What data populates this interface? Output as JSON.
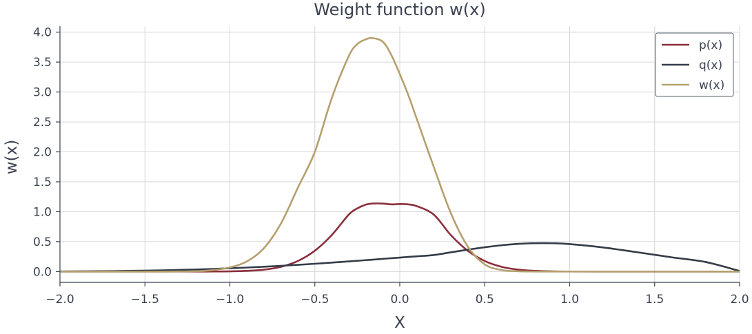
{
  "chart_data": {
    "type": "line",
    "title": "Weight function w(x)",
    "xlabel": "X",
    "ylabel": "w(x)",
    "xlim": [
      -2.0,
      2.0
    ],
    "ylim": [
      -0.18,
      4.1
    ],
    "grid": true,
    "legend_position": "top-right",
    "x_ticks": [
      -2.0,
      -1.5,
      -1.0,
      -0.5,
      0.0,
      0.5,
      1.0,
      1.5,
      2.0
    ],
    "x_tick_labels": [
      "−2.0",
      "−1.5",
      "−1.0",
      "−0.5",
      "0.0",
      "0.5",
      "1.0",
      "1.5",
      "2.0"
    ],
    "y_ticks": [
      0.0,
      0.5,
      1.0,
      1.5,
      2.0,
      2.5,
      3.0,
      3.5,
      4.0
    ],
    "y_tick_labels": [
      "0.0",
      "0.5",
      "1.0",
      "1.5",
      "2.0",
      "2.5",
      "3.0",
      "3.5",
      "4.0"
    ],
    "x": [
      -2.0,
      -1.8,
      -1.6,
      -1.4,
      -1.2,
      -1.1,
      -1.0,
      -0.9,
      -0.8,
      -0.7,
      -0.6,
      -0.5,
      -0.4,
      -0.3,
      -0.25,
      -0.2,
      -0.16,
      -0.1,
      -0.05,
      0.0,
      0.05,
      0.1,
      0.2,
      0.3,
      0.4,
      0.5,
      0.6,
      0.7,
      0.8,
      0.9,
      1.0,
      1.2,
      1.4,
      1.6,
      1.8,
      2.0
    ],
    "series": [
      {
        "name": "p(x)",
        "color": "#8b2e3c",
        "values": [
          0.0,
          0.0,
          0.0,
          0.0,
          0.0002,
          0.0011,
          0.0037,
          0.0114,
          0.0318,
          0.0795,
          0.1766,
          0.3485,
          0.6112,
          0.9524,
          1.0557,
          1.1184,
          1.137,
          1.1361,
          1.1226,
          1.1284,
          1.1226,
          1.0932,
          0.9524,
          0.6112,
          0.3485,
          0.1766,
          0.0795,
          0.0318,
          0.0114,
          0.0037,
          0.0011,
          0.0001,
          0.0,
          0.0,
          0.0,
          0.0
        ]
      },
      {
        "name": "q(x)",
        "color": "#343c48",
        "values": [
          0.0026,
          0.0057,
          0.0115,
          0.021,
          0.0351,
          0.0444,
          0.0552,
          0.0673,
          0.0808,
          0.0961,
          0.1128,
          0.1306,
          0.1498,
          0.1698,
          0.1802,
          0.1909,
          0.1994,
          0.2124,
          0.2234,
          0.234,
          0.2446,
          0.2551,
          0.2767,
          0.321,
          0.3655,
          0.406,
          0.44,
          0.463,
          0.474,
          0.473,
          0.459,
          0.402,
          0.3218,
          0.2388,
          0.16,
          0.01
        ]
      },
      {
        "name": "w(x)",
        "color": "#b5a06e",
        "values": [
          0.0,
          0.0,
          0.0,
          0.0004,
          0.0055,
          0.025,
          0.07,
          0.17,
          0.39,
          0.8,
          1.4,
          2.0,
          2.9,
          3.6,
          3.8,
          3.88,
          3.9,
          3.84,
          3.62,
          3.3,
          2.95,
          2.55,
          1.75,
          0.98,
          0.42,
          0.12,
          0.026,
          0.005,
          0.0008,
          0.0001,
          0.0,
          0.0,
          0.0,
          0.0,
          0.0,
          0.0
        ]
      }
    ]
  }
}
